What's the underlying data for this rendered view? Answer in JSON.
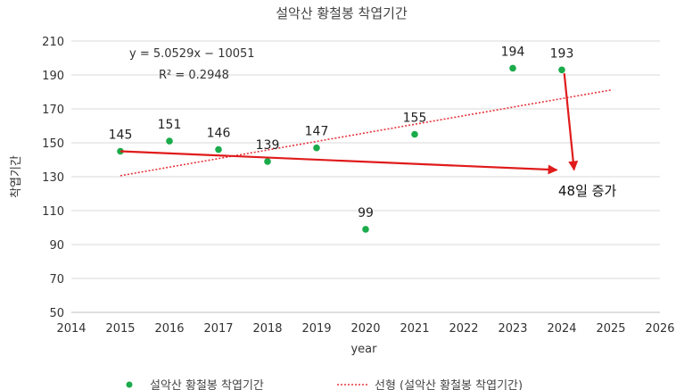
{
  "chart_data": {
    "type": "scatter",
    "title": "설악산 황철봉 착엽기간",
    "xlabel": "year",
    "ylabel": "착엽기간",
    "xlim": [
      2014,
      2026
    ],
    "ylim": [
      50,
      210
    ],
    "x_ticks": [
      "2014",
      "2015",
      "2016",
      "2017",
      "2018",
      "2019",
      "2020",
      "2021",
      "2022",
      "2023",
      "2024",
      "2025",
      "2026"
    ],
    "y_ticks": [
      "50",
      "70",
      "90",
      "110",
      "130",
      "150",
      "170",
      "190",
      "210"
    ],
    "grid": "horizontal",
    "series": [
      {
        "name": "설악산 황철봉 착엽기간",
        "color": "#1aab4a",
        "x": [
          2015,
          2016,
          2017,
          2018,
          2019,
          2020,
          2021,
          2023,
          2024
        ],
        "y": [
          145,
          151,
          146,
          139,
          147,
          99,
          155,
          194,
          193
        ],
        "labels": [
          "145",
          "151",
          "146",
          "139",
          "147",
          "99",
          "155",
          "194",
          "193"
        ]
      }
    ],
    "trendline": {
      "name": "선형 (설악산 황철봉 착엽기간)",
      "type": "linear",
      "slope": 5.0529,
      "intercept": -10051,
      "x_range": [
        2015,
        2025
      ],
      "color": "#e8343b",
      "equation": "y = 5.0529x − 10051",
      "r_squared": "R² = 0.2948"
    },
    "annotations": {
      "increase_text": "48일 증가",
      "arrow_color": "#e01b1b",
      "arrows": [
        {
          "from": [
            2015,
            145
          ],
          "to": [
            2023.9,
            134
          ]
        },
        {
          "from": [
            2024.05,
            191
          ],
          "to": [
            2024.25,
            134
          ]
        }
      ]
    },
    "legend": {
      "position": "bottom"
    }
  }
}
